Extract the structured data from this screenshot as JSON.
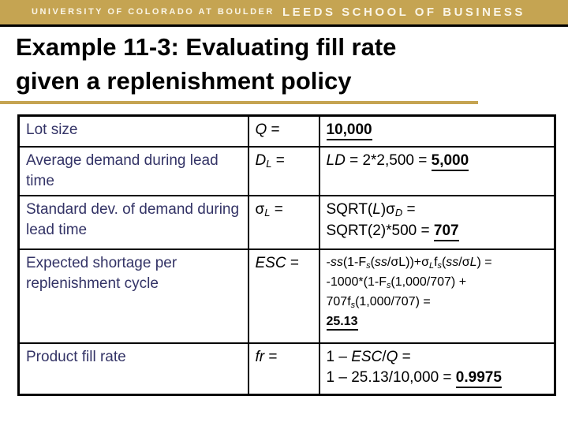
{
  "header": {
    "university": "UNIVERSITY OF COLORADO AT BOULDER",
    "school": "LEEDS SCHOOL OF BUSINESS"
  },
  "title": {
    "line1": "Example 11-3: Evaluating fill rate",
    "line2": "given a replenishment policy"
  },
  "colors": {
    "gold": "#C5A452",
    "bar_text": "#FAF5E6",
    "label_navy": "#333366",
    "text_black": "#000000",
    "background": "#FFFFFF"
  },
  "table": {
    "rows": [
      {
        "label": "Lot size",
        "small": false,
        "symbol": [
          {
            "t": "Q",
            "i": true
          },
          {
            "t": " ="
          }
        ],
        "value_lines": [
          [
            {
              "t": "10,000",
              "b": true,
              "u": true
            }
          ]
        ]
      },
      {
        "label": "Average demand during lead time",
        "small": false,
        "symbol": [
          {
            "t": "D",
            "i": true
          },
          {
            "t": "L",
            "i": true,
            "sub": true
          },
          {
            "t": " ="
          }
        ],
        "value_lines": [
          [
            {
              "t": "LD",
              "i": true
            },
            {
              "t": " = 2*2,500 = "
            },
            {
              "t": "5,000",
              "b": true,
              "u": true
            }
          ]
        ]
      },
      {
        "label": "Standard dev. of demand during lead time",
        "small": false,
        "symbol": [
          {
            "t": "σ"
          },
          {
            "t": "L",
            "i": true,
            "sub": true
          },
          {
            "t": " ="
          }
        ],
        "value_lines": [
          [
            {
              "t": "SQRT("
            },
            {
              "t": "L",
              "i": true
            },
            {
              "t": ")σ"
            },
            {
              "t": "D",
              "i": true,
              "sub": true
            },
            {
              "t": " ="
            }
          ],
          [
            {
              "t": "SQRT(2)*500 = "
            },
            {
              "t": "707",
              "b": true,
              "u": true
            }
          ]
        ]
      },
      {
        "label": "Expected shortage per replenishment cycle",
        "small": true,
        "symbol": [
          {
            "t": "ESC",
            "i": true
          },
          {
            "t": " ="
          }
        ],
        "value_lines": [
          [
            {
              "t": "-"
            },
            {
              "t": "ss",
              "i": true
            },
            {
              "t": "(1-F"
            },
            {
              "t": "s",
              "i": true,
              "sub": true
            },
            {
              "t": "("
            },
            {
              "t": "ss",
              "i": true
            },
            {
              "t": "/σL))+σ"
            },
            {
              "t": "L",
              "i": true,
              "sub": true
            },
            {
              "t": "f"
            },
            {
              "t": "s",
              "i": true,
              "sub": true
            },
            {
              "t": "("
            },
            {
              "t": "ss",
              "i": true
            },
            {
              "t": "/σ"
            },
            {
              "t": "L",
              "i": true
            },
            {
              "t": ") ="
            }
          ],
          [
            {
              "t": "-1000*(1-F"
            },
            {
              "t": "s",
              "i": true,
              "sub": true
            },
            {
              "t": "(1,000/707) +"
            }
          ],
          [
            {
              "t": "707f"
            },
            {
              "t": "s",
              "i": true,
              "sub": true
            },
            {
              "t": "(1,000/707) ="
            }
          ],
          [
            {
              "t": "25.13",
              "b": true,
              "u": true
            }
          ]
        ]
      },
      {
        "label": "Product fill rate",
        "small": false,
        "symbol": [
          {
            "t": "fr",
            "i": true
          },
          {
            "t": " ="
          }
        ],
        "value_lines": [
          [
            {
              "t": "1 – "
            },
            {
              "t": "ESC",
              "i": true
            },
            {
              "t": "/"
            },
            {
              "t": "Q",
              "i": true
            },
            {
              "t": " ="
            }
          ],
          [
            {
              "t": "1 – 25.13/10,000 = "
            },
            {
              "t": "0.9975",
              "b": true,
              "u": true
            }
          ]
        ]
      }
    ]
  }
}
